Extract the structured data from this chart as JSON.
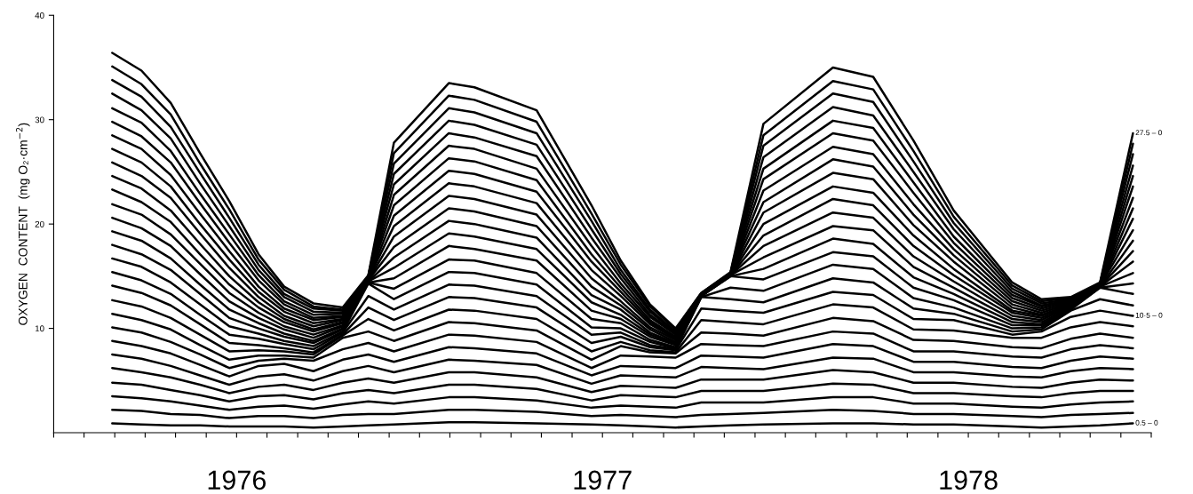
{
  "chart_data": {
    "type": "line",
    "ylabel": "OXYGEN  CONTENT  (mg O₂·cm$^{−2}$)",
    "x": [
      1976.16,
      1976.24,
      1976.32,
      1976.4,
      1976.48,
      1976.56,
      1976.63,
      1976.71,
      1976.79,
      1976.86,
      1976.93,
      1977.08,
      1977.15,
      1977.32,
      1977.47,
      1977.55,
      1977.63,
      1977.7,
      1977.77,
      1977.85,
      1977.94,
      1978.13,
      1978.24,
      1978.35,
      1978.46,
      1978.62,
      1978.7,
      1978.78,
      1978.86,
      1978.95
    ],
    "xlim": [
      1976,
      1979
    ],
    "xticks": [
      {
        "value": 1976.0,
        "label": null
      },
      {
        "value": 1976.083,
        "label": null
      },
      {
        "value": 1976.167,
        "label": null
      },
      {
        "value": 1976.25,
        "label": null
      },
      {
        "value": 1976.333,
        "label": null
      },
      {
        "value": 1976.417,
        "label": null
      },
      {
        "value": 1976.5,
        "label": "1976"
      },
      {
        "value": 1976.583,
        "label": null
      },
      {
        "value": 1976.667,
        "label": null
      },
      {
        "value": 1976.75,
        "label": null
      },
      {
        "value": 1976.833,
        "label": null
      },
      {
        "value": 1976.917,
        "label": null
      },
      {
        "value": 1977.0,
        "label": null
      },
      {
        "value": 1977.083,
        "label": null
      },
      {
        "value": 1977.167,
        "label": null
      },
      {
        "value": 1977.25,
        "label": null
      },
      {
        "value": 1977.333,
        "label": null
      },
      {
        "value": 1977.417,
        "label": null
      },
      {
        "value": 1977.5,
        "label": "1977"
      },
      {
        "value": 1977.583,
        "label": null
      },
      {
        "value": 1977.667,
        "label": null
      },
      {
        "value": 1977.75,
        "label": null
      },
      {
        "value": 1977.833,
        "label": null
      },
      {
        "value": 1977.917,
        "label": null
      },
      {
        "value": 1978.0,
        "label": null
      },
      {
        "value": 1978.083,
        "label": null
      },
      {
        "value": 1978.167,
        "label": null
      },
      {
        "value": 1978.25,
        "label": null
      },
      {
        "value": 1978.333,
        "label": null
      },
      {
        "value": 1978.417,
        "label": null
      },
      {
        "value": 1978.5,
        "label": "1978"
      },
      {
        "value": 1978.583,
        "label": null
      },
      {
        "value": 1978.667,
        "label": null
      },
      {
        "value": 1978.75,
        "label": null
      },
      {
        "value": 1978.833,
        "label": null
      },
      {
        "value": 1978.917,
        "label": null
      },
      {
        "value": 1979.0,
        "label": null
      }
    ],
    "ylim": [
      0,
      40
    ],
    "yticks": [
      10,
      20,
      30,
      40
    ],
    "series": [
      {
        "name": "0.5 – 0",
        "color": "#000000",
        "values": [
          0.9,
          0.8,
          0.7,
          0.7,
          0.6,
          0.6,
          0.6,
          0.5,
          0.6,
          0.7,
          0.8,
          1.0,
          1.0,
          0.9,
          0.8,
          0.7,
          0.6,
          0.5,
          0.6,
          0.7,
          0.8,
          0.9,
          0.9,
          0.8,
          0.8,
          0.6,
          0.5,
          0.6,
          0.7,
          0.9
        ]
      },
      {
        "color": "#000000",
        "values": [
          2.2,
          2.1,
          1.8,
          1.7,
          1.4,
          1.6,
          1.6,
          1.4,
          1.7,
          1.8,
          1.8,
          2.2,
          2.2,
          2.0,
          1.6,
          1.7,
          1.6,
          1.5,
          1.7,
          1.8,
          1.9,
          2.2,
          2.1,
          1.8,
          1.8,
          1.6,
          1.5,
          1.7,
          1.8,
          1.9
        ]
      },
      {
        "color": "#000000",
        "values": [
          3.5,
          3.3,
          3.0,
          2.6,
          2.2,
          2.5,
          2.6,
          2.3,
          2.7,
          3.0,
          2.8,
          3.4,
          3.4,
          3.1,
          2.4,
          2.6,
          2.5,
          2.4,
          2.9,
          2.9,
          2.9,
          3.4,
          3.4,
          2.8,
          2.8,
          2.5,
          2.4,
          2.7,
          2.9,
          3.0
        ]
      },
      {
        "color": "#000000",
        "values": [
          4.8,
          4.6,
          4.1,
          3.6,
          3.0,
          3.5,
          3.6,
          3.2,
          3.8,
          4.1,
          3.8,
          4.6,
          4.6,
          4.2,
          3.1,
          3.6,
          3.5,
          3.4,
          4.0,
          4.0,
          4.0,
          4.7,
          4.6,
          3.8,
          3.8,
          3.5,
          3.4,
          3.8,
          4.0,
          4.0
        ]
      },
      {
        "color": "#000000",
        "values": [
          6.2,
          5.8,
          5.3,
          4.6,
          3.8,
          4.4,
          4.6,
          4.1,
          4.8,
          5.2,
          4.8,
          5.8,
          5.8,
          5.3,
          3.9,
          4.5,
          4.4,
          4.3,
          5.1,
          5.1,
          5.1,
          6.0,
          5.8,
          4.8,
          4.8,
          4.4,
          4.3,
          4.8,
          5.1,
          5.0
        ]
      },
      {
        "color": "#000000",
        "values": [
          7.5,
          7.1,
          6.4,
          5.5,
          4.6,
          5.4,
          5.6,
          5.0,
          5.9,
          6.4,
          5.8,
          7.0,
          6.9,
          6.5,
          4.7,
          5.5,
          5.4,
          5.3,
          6.3,
          6.2,
          6.1,
          7.2,
          7.1,
          5.8,
          5.8,
          5.4,
          5.3,
          5.9,
          6.2,
          6.1
        ]
      },
      {
        "color": "#000000",
        "values": [
          8.8,
          8.3,
          7.6,
          6.5,
          5.4,
          6.4,
          6.6,
          5.9,
          7.0,
          7.5,
          6.8,
          8.2,
          8.1,
          7.6,
          5.5,
          6.4,
          6.3,
          6.2,
          7.4,
          7.3,
          7.2,
          8.5,
          8.3,
          6.8,
          6.8,
          6.3,
          6.2,
          6.9,
          7.3,
          7.1
        ]
      },
      {
        "color": "#000000",
        "values": [
          10.1,
          9.6,
          8.7,
          7.5,
          6.2,
          6.9,
          7.1,
          6.9,
          8.0,
          8.6,
          7.8,
          9.4,
          9.3,
          8.7,
          6.2,
          7.4,
          7.3,
          7.2,
          8.5,
          8.4,
          8.3,
          9.7,
          9.5,
          7.8,
          7.8,
          7.3,
          7.2,
          8.0,
          8.4,
          8.1
        ]
      },
      {
        "color": "#000000",
        "values": [
          11.4,
          10.8,
          9.9,
          8.4,
          7.0,
          7.4,
          7.4,
          7.2,
          9.1,
          9.7,
          8.8,
          10.6,
          10.5,
          9.8,
          7.0,
          8.3,
          7.7,
          7.6,
          9.6,
          9.5,
          9.3,
          11.0,
          10.7,
          8.9,
          8.8,
          8.2,
          8.1,
          9.0,
          9.5,
          9.1
        ]
      },
      {
        "color": "#000000",
        "values": [
          12.7,
          12.1,
          11.0,
          9.4,
          7.8,
          7.9,
          7.8,
          7.5,
          9.3,
          10.9,
          9.8,
          11.8,
          11.7,
          10.9,
          7.8,
          8.7,
          7.9,
          7.7,
          10.8,
          10.6,
          10.4,
          12.3,
          12.0,
          9.9,
          9.8,
          9.1,
          9.1,
          10.1,
          10.6,
          10.2
        ]
      },
      {
        "name": "10·5 – 0",
        "color": "#000000",
        "values": [
          14.1,
          13.4,
          12.2,
          10.4,
          8.6,
          8.4,
          8.1,
          7.7,
          9.4,
          12.0,
          10.8,
          13.0,
          12.9,
          12.0,
          8.6,
          9.2,
          8.2,
          7.9,
          11.9,
          11.7,
          11.5,
          13.5,
          13.2,
          10.9,
          10.8,
          9.4,
          9.7,
          11.1,
          11.7,
          11.2
        ]
      },
      {
        "color": "#000000",
        "values": [
          15.4,
          14.6,
          13.3,
          11.3,
          9.4,
          9.0,
          8.5,
          8.0,
          9.6,
          13.1,
          11.8,
          14.2,
          14.1,
          13.1,
          9.4,
          9.6,
          8.4,
          8.0,
          13.0,
          12.8,
          12.5,
          14.8,
          14.4,
          11.9,
          11.4,
          9.7,
          9.9,
          11.7,
          12.8,
          12.2
        ]
      },
      {
        "color": "#000000",
        "values": [
          16.7,
          15.9,
          14.4,
          12.3,
          10.2,
          9.5,
          8.8,
          8.3,
          9.7,
          14.3,
          12.8,
          15.4,
          15.3,
          14.2,
          10.1,
          10.0,
          8.7,
          8.1,
          13.0,
          13.9,
          13.6,
          16.1,
          15.7,
          12.9,
          12.0,
          10.0,
          10.1,
          11.8,
          13.9,
          13.3
        ]
      },
      {
        "color": "#000000",
        "values": [
          18.0,
          17.1,
          15.6,
          13.3,
          11.0,
          10.0,
          9.2,
          8.6,
          9.9,
          14.4,
          13.8,
          16.6,
          16.5,
          15.3,
          10.9,
          10.5,
          8.9,
          8.2,
          13.1,
          15.0,
          14.7,
          17.3,
          16.9,
          13.9,
          12.7,
          10.3,
          10.3,
          11.9,
          13.9,
          14.3
        ]
      },
      {
        "color": "#000000",
        "values": [
          19.3,
          18.4,
          16.7,
          14.2,
          11.8,
          10.5,
          9.5,
          8.8,
          10.0,
          14.4,
          14.8,
          17.9,
          17.6,
          16.5,
          11.7,
          10.9,
          9.2,
          8.4,
          13.1,
          15.0,
          15.7,
          18.6,
          18.1,
          14.9,
          13.3,
          10.6,
          10.4,
          11.9,
          14.0,
          15.3
        ]
      },
      {
        "color": "#000000",
        "values": [
          20.6,
          19.6,
          17.9,
          15.2,
          12.6,
          11.0,
          9.9,
          9.1,
          10.2,
          14.5,
          15.8,
          19.1,
          18.8,
          17.6,
          12.5,
          11.3,
          9.4,
          8.5,
          13.1,
          15.1,
          16.8,
          19.8,
          19.4,
          15.9,
          13.9,
          10.9,
          10.6,
          12.0,
          14.0,
          16.4
        ]
      },
      {
        "color": "#000000",
        "values": [
          21.9,
          20.9,
          19.0,
          16.2,
          13.4,
          11.5,
          10.2,
          9.4,
          10.3,
          14.5,
          16.8,
          20.3,
          20.0,
          18.7,
          13.2,
          11.8,
          9.6,
          8.6,
          13.1,
          15.1,
          17.9,
          21.1,
          20.6,
          16.9,
          14.5,
          11.2,
          10.8,
          12.1,
          14.0,
          17.4
        ]
      },
      {
        "color": "#000000",
        "values": [
          23.3,
          22.1,
          20.2,
          17.1,
          14.2,
          12.0,
          10.6,
          9.7,
          10.5,
          14.6,
          17.8,
          21.5,
          21.2,
          19.8,
          14.0,
          12.2,
          9.9,
          8.7,
          13.1,
          15.1,
          18.9,
          22.4,
          21.8,
          17.9,
          15.1,
          11.5,
          11.0,
          12.2,
          14.0,
          18.4
        ]
      },
      {
        "color": "#000000",
        "values": [
          24.6,
          23.4,
          21.3,
          18.1,
          15.0,
          12.5,
          10.9,
          9.9,
          10.6,
          14.6,
          18.8,
          22.7,
          22.4,
          20.9,
          14.8,
          12.6,
          10.1,
          8.9,
          13.2,
          15.1,
          20.0,
          23.6,
          23.0,
          18.9,
          15.7,
          11.7,
          11.2,
          12.3,
          14.1,
          19.4
        ]
      },
      {
        "color": "#000000",
        "values": [
          25.9,
          24.6,
          22.5,
          19.1,
          15.8,
          13.0,
          11.2,
          10.2,
          10.8,
          14.7,
          19.8,
          23.9,
          23.6,
          22.0,
          15.6,
          13.1,
          10.4,
          9.0,
          13.2,
          15.1,
          21.1,
          24.9,
          24.3,
          19.9,
          16.4,
          12.0,
          11.3,
          12.3,
          14.1,
          20.5
        ]
      },
      {
        "color": "#000000",
        "values": [
          27.2,
          25.9,
          23.6,
          20.0,
          16.6,
          13.5,
          11.6,
          10.5,
          10.9,
          14.7,
          20.8,
          25.1,
          24.8,
          23.1,
          16.4,
          13.5,
          10.6,
          9.1,
          13.2,
          15.2,
          22.1,
          26.2,
          25.5,
          20.9,
          17.0,
          12.3,
          11.5,
          12.4,
          14.1,
          21.5
        ]
      },
      {
        "color": "#000000",
        "values": [
          28.5,
          27.2,
          24.7,
          21.0,
          17.4,
          14.0,
          11.9,
          10.8,
          11.1,
          14.8,
          21.8,
          26.3,
          26.0,
          24.2,
          17.1,
          13.9,
          10.8,
          9.2,
          13.2,
          15.2,
          23.2,
          27.4,
          26.7,
          21.9,
          17.6,
          12.6,
          11.7,
          12.5,
          14.2,
          22.5
        ]
      },
      {
        "color": "#000000",
        "values": [
          29.8,
          28.4,
          25.9,
          22.0,
          18.2,
          14.6,
          12.3,
          11.0,
          11.2,
          14.8,
          22.8,
          27.5,
          27.2,
          25.3,
          17.9,
          14.3,
          11.1,
          9.4,
          13.3,
          15.2,
          24.3,
          28.7,
          28.0,
          23.0,
          18.2,
          12.9,
          11.9,
          12.6,
          14.2,
          23.6
        ]
      },
      {
        "color": "#000000",
        "values": [
          31.1,
          29.7,
          27.0,
          22.9,
          19.0,
          15.1,
          12.6,
          11.3,
          11.4,
          14.9,
          23.8,
          28.7,
          28.3,
          26.5,
          18.7,
          14.8,
          11.3,
          9.5,
          13.3,
          15.3,
          25.3,
          29.9,
          29.2,
          24.0,
          18.8,
          13.2,
          12.1,
          12.7,
          14.2,
          24.6
        ]
      },
      {
        "color": "#000000",
        "values": [
          32.5,
          30.9,
          28.2,
          23.9,
          19.8,
          15.6,
          13.0,
          11.6,
          11.5,
          14.9,
          24.8,
          29.9,
          29.5,
          27.6,
          19.5,
          15.2,
          11.6,
          9.6,
          13.3,
          15.3,
          26.4,
          31.2,
          30.4,
          25.0,
          19.5,
          13.5,
          12.2,
          12.7,
          14.3,
          25.6
        ]
      },
      {
        "color": "#000000",
        "values": [
          33.8,
          32.2,
          29.3,
          24.9,
          20.6,
          16.1,
          13.3,
          11.9,
          11.7,
          15.0,
          25.8,
          31.1,
          30.7,
          28.7,
          20.3,
          15.6,
          11.8,
          9.7,
          13.3,
          15.3,
          27.5,
          32.5,
          31.7,
          26.0,
          20.1,
          13.8,
          12.4,
          12.8,
          14.3,
          26.7
        ]
      },
      {
        "color": "#000000",
        "values": [
          35.1,
          33.4,
          30.5,
          25.8,
          21.4,
          16.6,
          13.7,
          12.1,
          11.8,
          15.0,
          26.8,
          32.3,
          31.9,
          29.8,
          21.0,
          16.1,
          12.1,
          9.9,
          13.4,
          15.3,
          28.5,
          33.7,
          32.9,
          27.0,
          20.7,
          14.1,
          12.6,
          12.9,
          14.3,
          27.7
        ]
      },
      {
        "name": "27.5 – 0",
        "color": "#000000",
        "values": [
          36.4,
          34.7,
          31.6,
          26.8,
          22.2,
          17.1,
          14.0,
          12.4,
          12.0,
          15.1,
          27.8,
          33.5,
          33.1,
          30.9,
          21.8,
          16.5,
          12.3,
          10.0,
          13.4,
          15.4,
          29.6,
          35.0,
          34.1,
          28.0,
          21.3,
          14.4,
          12.8,
          13.0,
          14.4,
          28.7
        ]
      }
    ]
  }
}
